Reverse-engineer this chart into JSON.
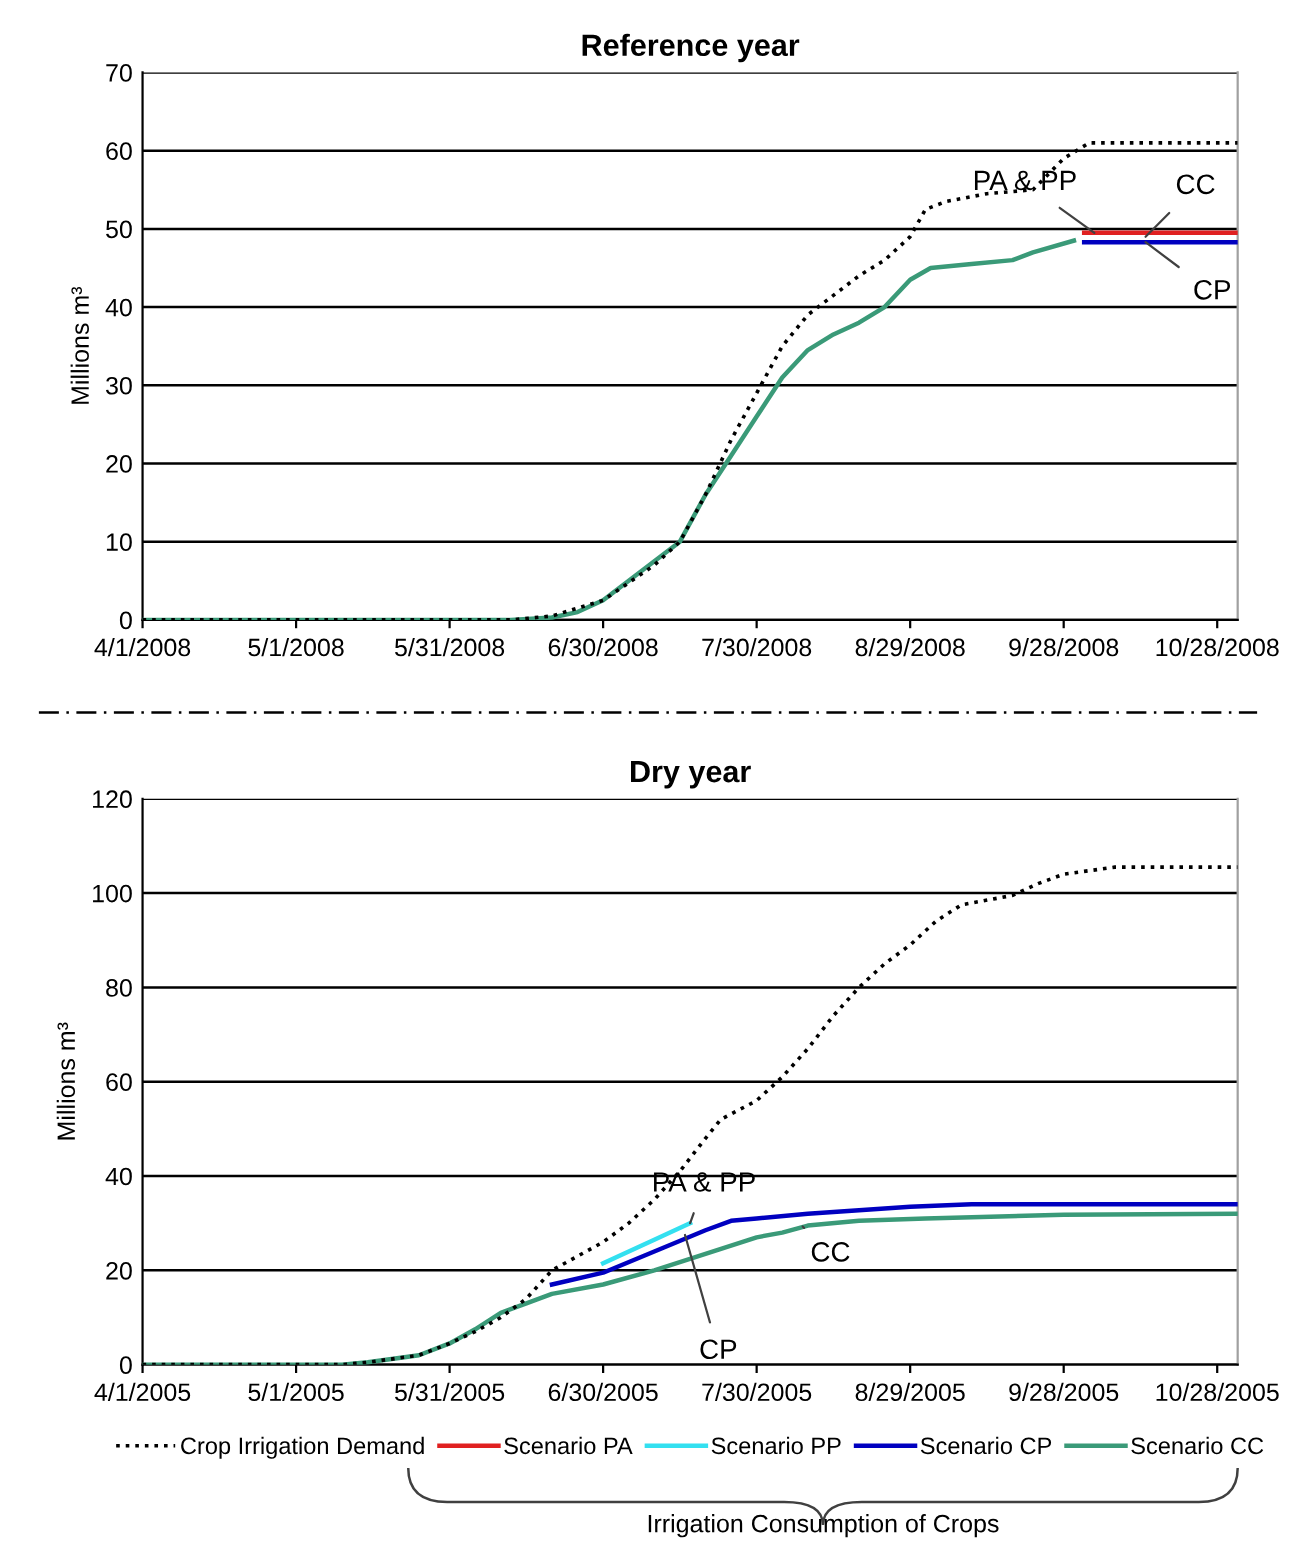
{
  "chart_data": [
    {
      "type": "line",
      "title": "Reference year",
      "ylabel": "Millions m³",
      "xlim": [
        "2008-04-01",
        "2008-11-01"
      ],
      "ylim": [
        0,
        70
      ],
      "yticks": [
        0,
        10,
        20,
        30,
        40,
        50,
        60,
        70
      ],
      "xticks": [
        {
          "value": "2008-04-01",
          "label": "4/1/2008"
        },
        {
          "value": "2008-05-01",
          "label": "5/1/2008"
        },
        {
          "value": "2008-05-31",
          "label": "5/31/2008"
        },
        {
          "value": "2008-06-30",
          "label": "6/30/2008"
        },
        {
          "value": "2008-07-30",
          "label": "7/30/2008"
        },
        {
          "value": "2008-08-29",
          "label": "8/29/2008"
        },
        {
          "value": "2008-09-28",
          "label": "9/28/2008"
        },
        {
          "value": "2008-10-28",
          "label": "10/28/2008"
        }
      ],
      "grid": "y",
      "legend": "bottom",
      "series": [
        {
          "name": "Crop Irrigation Demand",
          "color": "#000000",
          "line_style": "dotted",
          "x": [
            "2008-04-01",
            "2008-06-12",
            "2008-06-20",
            "2008-06-30",
            "2008-07-10",
            "2008-07-15",
            "2008-07-20",
            "2008-07-25",
            "2008-07-30",
            "2008-08-04",
            "2008-08-09",
            "2008-08-14",
            "2008-08-19",
            "2008-08-24",
            "2008-08-29",
            "2008-09-01",
            "2008-09-05",
            "2008-09-13",
            "2008-09-22",
            "2008-09-28",
            "2008-10-03",
            "2008-11-01"
          ],
          "values": [
            0,
            0,
            0.5,
            2.5,
            7,
            10,
            16,
            23,
            29,
            35,
            39,
            41.5,
            44,
            46,
            49,
            52.5,
            53.5,
            54.5,
            55,
            59,
            61,
            61
          ]
        },
        {
          "name": "Scenario PA",
          "color": "#e02020",
          "line_style": "solid",
          "x": [
            "2008-10-02",
            "2008-11-01"
          ],
          "values": [
            49.5,
            49.5
          ]
        },
        {
          "name": "Scenario CP",
          "color": "#0000c0",
          "line_style": "solid",
          "x": [
            "2008-10-02",
            "2008-11-01"
          ],
          "values": [
            48.3,
            48.3
          ]
        },
        {
          "name": "Scenario CC",
          "color": "#3a9a78",
          "line_style": "solid",
          "x": [
            "2008-04-01",
            "2008-06-12",
            "2008-06-20",
            "2008-06-25",
            "2008-06-30",
            "2008-07-05",
            "2008-07-10",
            "2008-07-15",
            "2008-07-20",
            "2008-07-25",
            "2008-07-30",
            "2008-08-04",
            "2008-08-09",
            "2008-08-14",
            "2008-08-19",
            "2008-08-24",
            "2008-08-29",
            "2008-09-02",
            "2008-09-10",
            "2008-09-18",
            "2008-09-22",
            "2008-09-30"
          ],
          "values": [
            0,
            0,
            0.3,
            1,
            2.5,
            5,
            7.5,
            10,
            16,
            21,
            26,
            31,
            34.5,
            36.5,
            38,
            40,
            43.5,
            45,
            45.5,
            46,
            47,
            48.5
          ]
        }
      ],
      "annotations": [
        {
          "text": "PA & PP",
          "x": "2008-10-04",
          "y": 49.5
        },
        {
          "text": "CC",
          "x": "2008-10-14",
          "y": 49
        },
        {
          "text": "CP",
          "x": "2008-10-14",
          "y": 48.3
        }
      ]
    },
    {
      "type": "line",
      "title": "Dry year",
      "ylabel": "Millions m³",
      "xlim": [
        "2005-04-01",
        "2005-11-01"
      ],
      "ylim": [
        0,
        120
      ],
      "yticks": [
        0,
        20,
        40,
        60,
        80,
        100,
        120
      ],
      "xticks": [
        {
          "value": "2005-04-01",
          "label": "4/1/2005"
        },
        {
          "value": "2005-05-01",
          "label": "5/1/2005"
        },
        {
          "value": "2005-05-31",
          "label": "5/31/2005"
        },
        {
          "value": "2005-06-30",
          "label": "6/30/2005"
        },
        {
          "value": "2005-07-30",
          "label": "7/30/2005"
        },
        {
          "value": "2005-08-29",
          "label": "8/29/2005"
        },
        {
          "value": "2005-09-28",
          "label": "9/28/2005"
        },
        {
          "value": "2005-10-28",
          "label": "10/28/2005"
        }
      ],
      "grid": "y",
      "legend": "bottom",
      "series": [
        {
          "name": "Crop Irrigation Demand",
          "color": "#000000",
          "line_style": "dotted",
          "x": [
            "2005-04-01",
            "2005-05-10",
            "2005-05-15",
            "2005-05-25",
            "2005-05-31",
            "2005-06-05",
            "2005-06-10",
            "2005-06-15",
            "2005-06-20",
            "2005-06-25",
            "2005-06-30",
            "2005-07-05",
            "2005-07-10",
            "2005-07-15",
            "2005-07-20",
            "2005-07-23",
            "2005-07-30",
            "2005-08-04",
            "2005-08-09",
            "2005-08-14",
            "2005-08-19",
            "2005-08-24",
            "2005-08-29",
            "2005-09-03",
            "2005-09-08",
            "2005-09-18",
            "2005-09-23",
            "2005-09-28",
            "2005-10-08",
            "2005-11-01"
          ],
          "values": [
            0,
            0,
            0.5,
            2,
            4.5,
            7,
            10,
            14,
            20,
            23,
            26,
            30,
            35,
            41,
            48,
            52,
            56,
            61,
            67,
            74,
            80,
            85,
            89,
            94,
            97.5,
            99.5,
            102,
            104,
            105.5,
            105.5
          ]
        },
        {
          "name": "Scenario PA",
          "color": "#e02020",
          "line_style": "solid"
        },
        {
          "name": "Scenario PP",
          "color": "#33e0f0",
          "line_style": "solid",
          "x": [
            "2005-06-30",
            "2005-07-10",
            "2005-07-17"
          ],
          "values": [
            21.5,
            26.5,
            30
          ]
        },
        {
          "name": "Scenario CP",
          "color": "#0000c0",
          "line_style": "solid",
          "x": [
            "2005-06-20",
            "2005-06-30",
            "2005-07-10",
            "2005-07-20",
            "2005-07-25",
            "2005-07-30",
            "2005-08-09",
            "2005-08-29",
            "2005-09-10",
            "2005-11-01"
          ],
          "values": [
            17,
            19.5,
            24,
            28.5,
            30.5,
            31,
            32,
            33.5,
            34,
            34
          ]
        },
        {
          "name": "Scenario CC",
          "color": "#3a9a78",
          "line_style": "solid",
          "x": [
            "2005-04-01",
            "2005-05-10",
            "2005-05-15",
            "2005-05-25",
            "2005-05-31",
            "2005-06-05",
            "2005-06-10",
            "2005-06-15",
            "2005-06-20",
            "2005-06-30",
            "2005-07-10",
            "2005-07-20",
            "2005-07-30",
            "2005-08-04",
            "2005-08-09",
            "2005-08-19",
            "2005-09-01",
            "2005-09-28",
            "2005-11-01"
          ],
          "values": [
            0,
            0,
            0.5,
            2,
            4.5,
            7.5,
            11,
            13,
            15,
            17,
            20,
            23.5,
            27,
            28,
            29.5,
            30.5,
            31,
            31.8,
            32
          ]
        }
      ],
      "annotations": [
        {
          "text": "PA & PP",
          "x": "2005-07-17",
          "y": 30
        },
        {
          "text": "CC",
          "x": "2005-08-08",
          "y": 29.3
        },
        {
          "text": "CP",
          "x": "2005-07-16",
          "y": 27.5
        },
        "Irrigation Consumption of Crops"
      ]
    }
  ]
}
